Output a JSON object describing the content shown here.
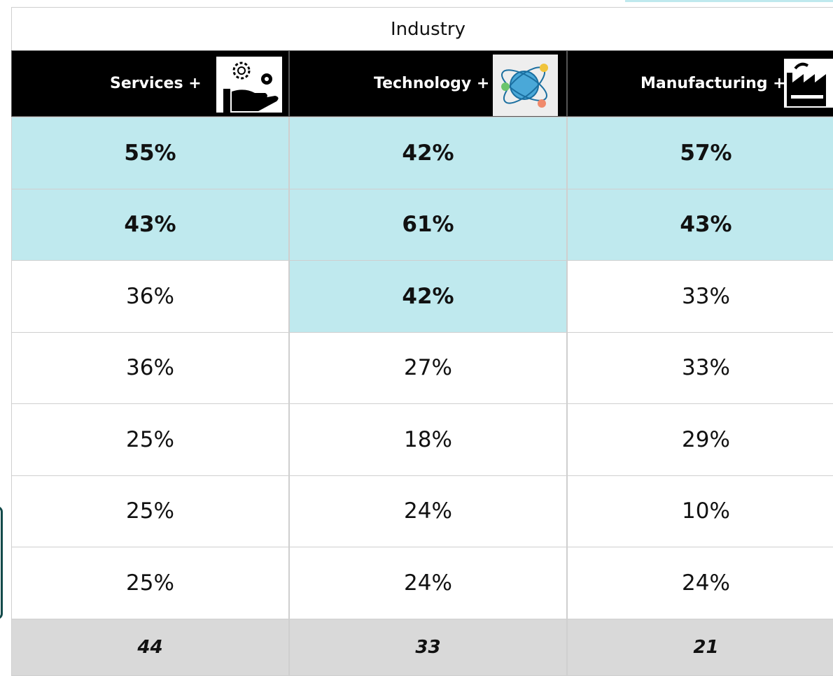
{
  "table": {
    "title": "Industry",
    "columns": [
      "Services +",
      "Technology +",
      "Manufacturing +"
    ],
    "rows": [
      [
        {
          "text": "55%",
          "highlight": true
        },
        {
          "text": "42%",
          "highlight": true
        },
        {
          "text": "57%",
          "highlight": true
        }
      ],
      [
        {
          "text": "43%",
          "highlight": true
        },
        {
          "text": "61%",
          "highlight": true
        },
        {
          "text": "43%",
          "highlight": true
        }
      ],
      [
        {
          "text": "36%",
          "highlight": false
        },
        {
          "text": "42%",
          "highlight": true
        },
        {
          "text": "33%",
          "highlight": false
        }
      ],
      [
        {
          "text": "36%",
          "highlight": false
        },
        {
          "text": "27%",
          "highlight": false
        },
        {
          "text": "33%",
          "highlight": false
        }
      ],
      [
        {
          "text": "25%",
          "highlight": false
        },
        {
          "text": "18%",
          "highlight": false
        },
        {
          "text": "29%",
          "highlight": false
        }
      ],
      [
        {
          "text": "25%",
          "highlight": false
        },
        {
          "text": "24%",
          "highlight": false
        },
        {
          "text": "10%",
          "highlight": false
        }
      ],
      [
        {
          "text": "25%",
          "highlight": false
        },
        {
          "text": "24%",
          "highlight": false
        },
        {
          "text": "24%",
          "highlight": false
        }
      ]
    ],
    "footer": [
      "44",
      "33",
      "21"
    ]
  }
}
